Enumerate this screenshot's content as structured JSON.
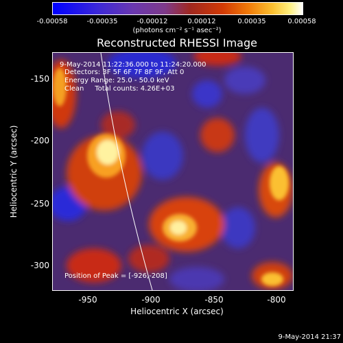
{
  "colorbar": {
    "ticks": [
      "-0.00058",
      "-0.00035",
      "-0.00012",
      "0.00012",
      "0.00035",
      "0.00058"
    ],
    "units": "(photons cm⁻² s⁻¹ asec⁻²)"
  },
  "title": "Reconstructed RHESSI Image",
  "annotations": {
    "time_range": "9-May-2014 11:22:36.000 to 11:24:20.000",
    "detectors": "Detectors: 3F 5F 6F 7F 8F 9F, Att 0",
    "energy": "Energy Range: 25.0 - 50.0 keV",
    "method": "Clean     Total counts: 4.26E+03",
    "peak": "Position of Peak = [-926,-208]"
  },
  "axes": {
    "xlabel": "Heliocentric X (arcsec)",
    "ylabel": "Heliocentric Y (arcsec)",
    "xticks": [
      "-950",
      "-900",
      "-850",
      "-800"
    ],
    "yticks": [
      "-150",
      "-200",
      "-250",
      "-300"
    ],
    "xlim": [
      -975,
      -785
    ],
    "ylim": [
      -320,
      -130
    ]
  },
  "timestamp": "9-May-2014 21:37",
  "colors": {
    "background": "#000000",
    "limb_line": "#ffffff"
  }
}
